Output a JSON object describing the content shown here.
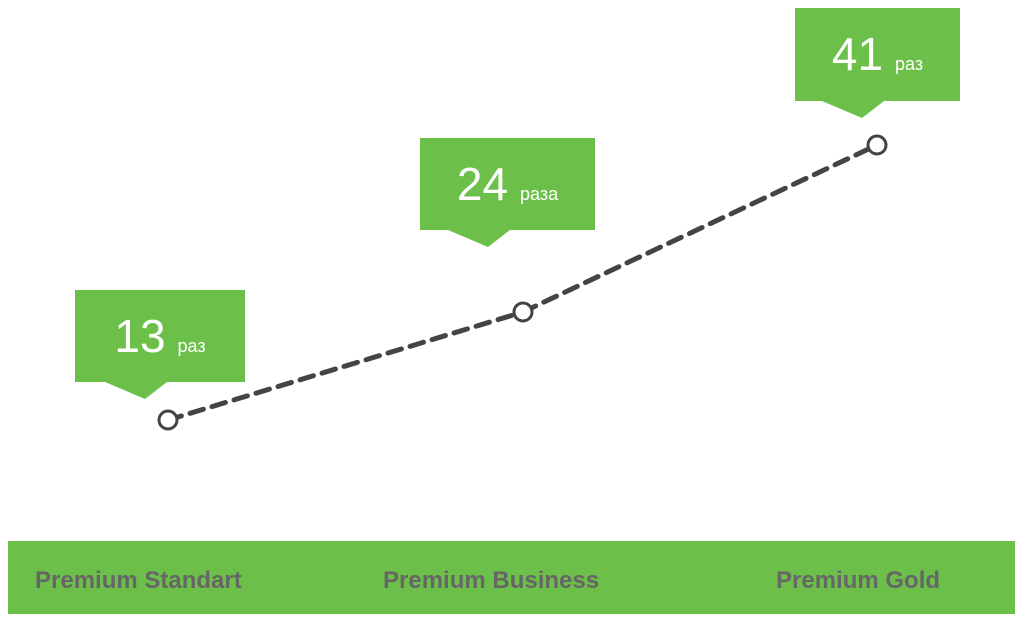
{
  "chart_data": {
    "type": "line",
    "categories": [
      "Premium Standart",
      "Premium Business",
      "Premium Gold"
    ],
    "values": [
      13,
      24,
      41
    ],
    "units": [
      "раз",
      "раза",
      "раз"
    ],
    "title": "",
    "xlabel": "",
    "ylabel": "",
    "line_style": "dashed",
    "grid": false,
    "legend": "none"
  },
  "colors": {
    "callout": "#6cc04a",
    "category_bar": "#6cc04a",
    "line": "#444444",
    "marker_fill": "#ffffff",
    "label_text": "#666666"
  }
}
